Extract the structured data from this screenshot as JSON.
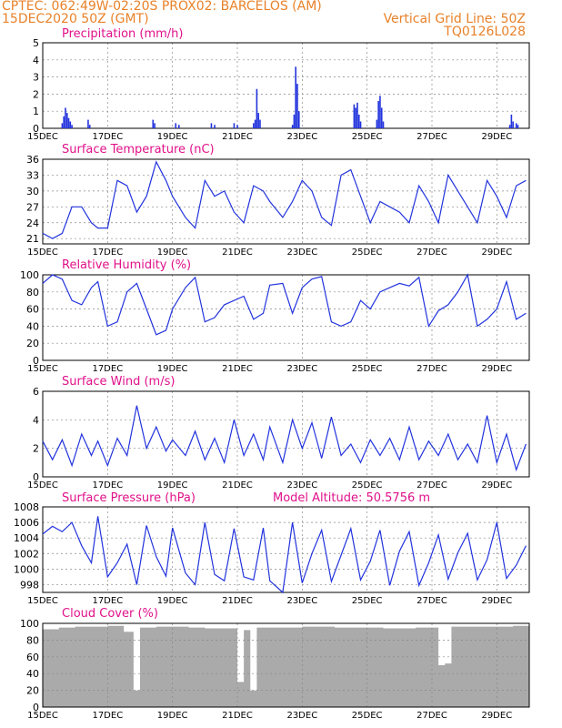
{
  "header": {
    "left_line1": "CPTEC:   062:49W-02:20S   PROX02: BARCELOS (AM)",
    "left_line2": "15DEC2020 50Z (GMT)",
    "right_line1": "Vertical Grid Line: 50Z",
    "right_line2": "TQ0126L028"
  },
  "colors": {
    "header": "#e8822a",
    "title": "#e0118a",
    "series": "#2233dd",
    "cloud": "#aaaaaa"
  },
  "x_labels": [
    "15DEC",
    "17DEC",
    "19DEC",
    "21DEC",
    "23DEC",
    "25DEC",
    "27DEC",
    "29DEC"
  ],
  "panels": {
    "precip": {
      "title": "Precipitation (mm/h)",
      "ylim": [
        0,
        5
      ],
      "yticks": [
        "0",
        "1",
        "2",
        "3",
        "4",
        "5"
      ]
    },
    "temp": {
      "title": "Surface Temperature (nC)",
      "ylim": [
        20,
        36
      ],
      "yticks": [
        "21",
        "24",
        "27",
        "30",
        "33",
        "36"
      ],
      "ytick_values": [
        21,
        24,
        27,
        30,
        33,
        36
      ]
    },
    "rh": {
      "title": "Relative Humidity (%)",
      "ylim": [
        0,
        100
      ],
      "yticks": [
        "0",
        "20",
        "40",
        "60",
        "80",
        "100"
      ]
    },
    "wind": {
      "title": "Surface Wind (m/s)",
      "ylim": [
        0,
        6
      ],
      "yticks": [
        "0",
        "2",
        "4",
        "6"
      ]
    },
    "pressure": {
      "title": "Surface Pressure (hPa)",
      "extra": "Model Altitude: 50.5756 m",
      "ylim": [
        997,
        1008
      ],
      "yticks": [
        "998",
        "1000",
        "1002",
        "1004",
        "1006",
        "1008"
      ],
      "ytick_values": [
        998,
        1000,
        1002,
        1004,
        1006,
        1008
      ]
    },
    "cloud": {
      "title": "Cloud Cover (%)",
      "ylim": [
        0,
        100
      ],
      "yticks": [
        "0",
        "20",
        "40",
        "60",
        "80",
        "100"
      ]
    }
  },
  "chart_data": [
    {
      "type": "bar",
      "title": "Precipitation (mm/h)",
      "x_unit": "day offset from 15DEC",
      "ylim": [
        0,
        5
      ],
      "x": [
        0.6,
        0.65,
        0.7,
        0.75,
        0.8,
        0.85,
        0.9,
        1.4,
        1.45,
        3.4,
        3.45,
        4.1,
        4.2,
        5.2,
        5.3,
        5.9,
        6.0,
        6.5,
        6.55,
        6.6,
        6.65,
        6.7,
        7.7,
        7.75,
        7.8,
        7.85,
        7.9,
        9.6,
        9.65,
        9.7,
        9.75,
        9.8,
        10.3,
        10.35,
        10.4,
        10.45,
        10.5,
        14.4,
        14.45,
        14.5,
        14.6,
        14.65
      ],
      "values": [
        0.3,
        0.7,
        1.2,
        0.9,
        0.6,
        0.4,
        0.2,
        0.5,
        0.2,
        0.5,
        0.3,
        0.3,
        0.2,
        0.3,
        0.2,
        0.3,
        0.2,
        0.3,
        0.5,
        2.3,
        0.9,
        0.5,
        0.2,
        0.8,
        3.6,
        2.6,
        1.0,
        1.4,
        1.2,
        1.5,
        0.8,
        0.4,
        0.5,
        1.6,
        1.9,
        1.2,
        0.4,
        0.2,
        0.8,
        0.4,
        0.3,
        0.2
      ]
    },
    {
      "type": "line",
      "title": "Surface Temperature (nC)",
      "ylim": [
        20,
        36
      ],
      "x": [
        0,
        0.3,
        0.6,
        0.9,
        1.2,
        1.5,
        1.7,
        2.0,
        2.3,
        2.6,
        2.9,
        3.2,
        3.5,
        3.8,
        4.0,
        4.4,
        4.7,
        5.0,
        5.3,
        5.6,
        5.9,
        6.2,
        6.5,
        6.8,
        7.0,
        7.4,
        7.7,
        8.0,
        8.3,
        8.6,
        8.9,
        9.2,
        9.5,
        9.8,
        10.1,
        10.4,
        10.7,
        11.0,
        11.3,
        11.6,
        11.9,
        12.2,
        12.5,
        12.8,
        13.1,
        13.4,
        13.7,
        14.0,
        14.3,
        14.6,
        14.9
      ],
      "values": [
        22,
        21,
        22,
        27,
        27,
        24,
        23,
        23,
        32,
        31,
        26,
        29,
        35.5,
        32,
        29,
        25,
        23,
        32,
        29,
        30,
        26,
        24,
        31,
        30,
        28,
        25,
        28,
        32,
        30,
        25,
        23.5,
        33,
        34,
        29,
        24,
        28,
        27,
        26,
        24,
        31,
        28,
        24,
        33,
        30,
        27,
        24,
        32,
        29,
        25,
        31,
        32
      ]
    },
    {
      "type": "line",
      "title": "Relative Humidity (%)",
      "ylim": [
        0,
        100
      ],
      "x": [
        0,
        0.3,
        0.6,
        0.9,
        1.2,
        1.5,
        1.7,
        2.0,
        2.3,
        2.6,
        2.9,
        3.2,
        3.5,
        3.8,
        4.0,
        4.4,
        4.7,
        5.0,
        5.3,
        5.6,
        5.9,
        6.2,
        6.5,
        6.8,
        7.0,
        7.4,
        7.7,
        8.0,
        8.3,
        8.6,
        8.9,
        9.2,
        9.5,
        9.8,
        10.1,
        10.4,
        10.7,
        11.0,
        11.3,
        11.6,
        11.9,
        12.2,
        12.5,
        12.8,
        13.1,
        13.4,
        13.7,
        14.0,
        14.3,
        14.6,
        14.9
      ],
      "values": [
        90,
        100,
        95,
        70,
        65,
        85,
        92,
        40,
        45,
        80,
        90,
        60,
        30,
        35,
        60,
        85,
        97,
        45,
        50,
        65,
        70,
        75,
        48,
        55,
        88,
        90,
        55,
        85,
        95,
        98,
        45,
        40,
        45,
        70,
        60,
        80,
        85,
        90,
        87,
        97,
        40,
        58,
        65,
        80,
        100,
        40,
        48,
        60,
        92,
        48,
        55
      ]
    },
    {
      "type": "line",
      "title": "Surface Wind (m/s)",
      "ylim": [
        0,
        6
      ],
      "x": [
        0,
        0.3,
        0.6,
        0.9,
        1.2,
        1.5,
        1.7,
        2.0,
        2.3,
        2.6,
        2.9,
        3.2,
        3.5,
        3.8,
        4.0,
        4.4,
        4.7,
        5.0,
        5.3,
        5.6,
        5.9,
        6.2,
        6.5,
        6.8,
        7.0,
        7.4,
        7.7,
        8.0,
        8.3,
        8.6,
        8.9,
        9.2,
        9.5,
        9.8,
        10.1,
        10.4,
        10.7,
        11.0,
        11.3,
        11.6,
        11.9,
        12.2,
        12.5,
        12.8,
        13.1,
        13.4,
        13.7,
        14.0,
        14.3,
        14.6,
        14.9
      ],
      "values": [
        2.5,
        1.2,
        2.6,
        0.8,
        3.0,
        1.5,
        2.5,
        0.8,
        2.7,
        1.5,
        5.0,
        2.0,
        3.5,
        1.8,
        2.6,
        1.5,
        3.2,
        1.2,
        2.7,
        1.0,
        4.0,
        1.5,
        3.0,
        1.2,
        3.5,
        1.0,
        4.0,
        2.0,
        3.8,
        1.3,
        4.2,
        1.5,
        2.3,
        1.0,
        2.6,
        1.5,
        2.7,
        1.2,
        3.5,
        1.2,
        2.5,
        1.5,
        3.0,
        1.2,
        2.3,
        1.0,
        4.3,
        1.0,
        3.0,
        0.5,
        2.3
      ]
    },
    {
      "type": "line",
      "title": "Surface Pressure (hPa)",
      "ylim": [
        997,
        1008
      ],
      "x": [
        0,
        0.3,
        0.6,
        0.9,
        1.2,
        1.5,
        1.7,
        2.0,
        2.3,
        2.6,
        2.9,
        3.2,
        3.5,
        3.8,
        4.0,
        4.4,
        4.7,
        5.0,
        5.3,
        5.6,
        5.9,
        6.2,
        6.5,
        6.8,
        7.0,
        7.4,
        7.7,
        8.0,
        8.3,
        8.6,
        8.9,
        9.2,
        9.5,
        9.8,
        10.1,
        10.4,
        10.7,
        11.0,
        11.3,
        11.6,
        11.9,
        12.2,
        12.5,
        12.8,
        13.1,
        13.4,
        13.7,
        14.0,
        14.3,
        14.6,
        14.9
      ],
      "values": [
        1004.5,
        1005.5,
        1004.8,
        1006.0,
        1003.0,
        1000.8,
        1006.8,
        999.0,
        1000.8,
        1003.2,
        998.0,
        1005.6,
        1001.6,
        999.1,
        1005.3,
        999.5,
        998.0,
        1006.0,
        999.3,
        998.5,
        1005.2,
        999.0,
        998.6,
        1005.3,
        998.5,
        997.0,
        1006.0,
        998.2,
        1002.0,
        1005.0,
        998.4,
        1001.8,
        1005.2,
        998.6,
        1001.0,
        1005.0,
        997.9,
        1002.3,
        1004.8,
        997.9,
        1000.8,
        1004.4,
        998.7,
        1002.1,
        1004.6,
        998.6,
        1001.2,
        1006.0,
        998.8,
        1000.5,
        1003.0
      ]
    },
    {
      "type": "area",
      "title": "Cloud Cover (%)",
      "ylim": [
        0,
        100
      ],
      "x": [
        0,
        0.5,
        1.0,
        1.5,
        2.0,
        2.5,
        2.8,
        3.0,
        3.5,
        4.0,
        4.5,
        5.0,
        5.5,
        6.0,
        6.2,
        6.4,
        6.6,
        7.0,
        7.5,
        8.0,
        8.5,
        9.0,
        9.5,
        10.0,
        10.5,
        11.0,
        11.5,
        12.0,
        12.2,
        12.4,
        12.6,
        13.0,
        13.5,
        14.0,
        14.5,
        14.9
      ],
      "values": [
        93,
        95,
        96,
        96,
        97,
        90,
        20,
        95,
        96,
        96,
        95,
        94,
        94,
        30,
        92,
        20,
        95,
        95,
        95,
        96,
        96,
        95,
        95,
        95,
        94,
        94,
        95,
        95,
        50,
        52,
        96,
        96,
        96,
        96,
        97,
        97
      ]
    }
  ]
}
